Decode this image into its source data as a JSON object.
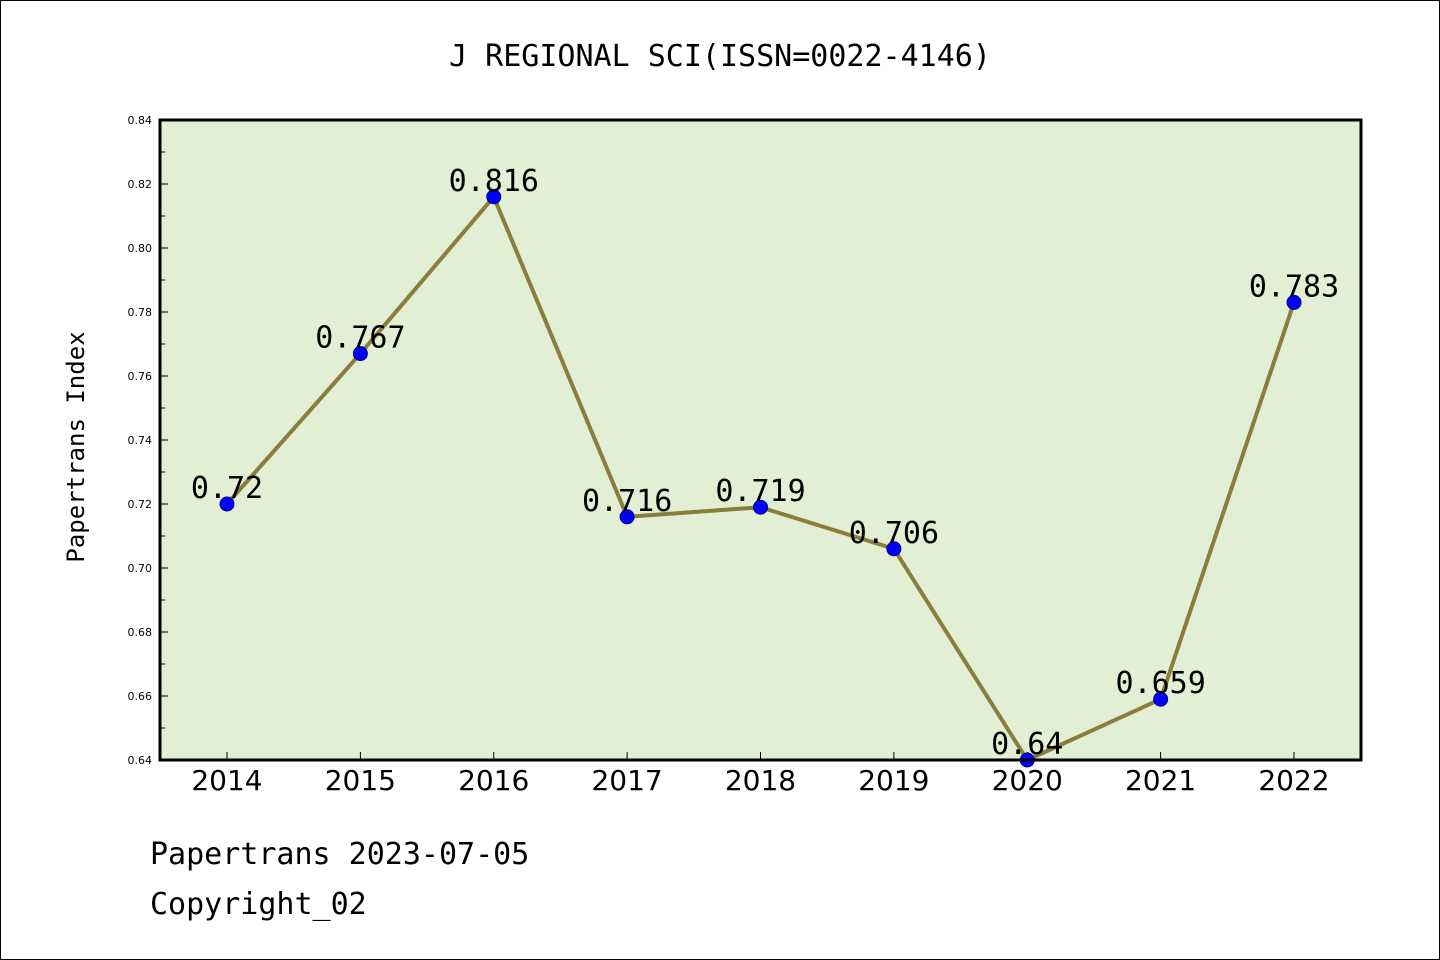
{
  "chart_data": {
    "type": "line",
    "title": "J REGIONAL SCI(ISSN=0022-4146)",
    "xlabel": "",
    "ylabel": "Papertrans Index",
    "categories": [
      "2014",
      "2015",
      "2016",
      "2017",
      "2018",
      "2019",
      "2020",
      "2021",
      "2022"
    ],
    "values": [
      0.72,
      0.767,
      0.816,
      0.716,
      0.719,
      0.706,
      0.64,
      0.659,
      0.783
    ],
    "data_labels": [
      "0.72",
      "0.767",
      "0.816",
      "0.716",
      "0.719",
      "0.706",
      "0.64",
      "0.659",
      "0.783"
    ],
    "ylim": [
      0.64,
      0.84
    ],
    "yticks": [
      "0.64",
      "0.66",
      "0.68",
      "0.70",
      "0.72",
      "0.74",
      "0.76",
      "0.78",
      "0.80",
      "0.82",
      "0.84"
    ],
    "grid": false,
    "colors": {
      "plot_background": "#e2efd4",
      "line": "#8b7d3a",
      "marker": "#0000ff"
    }
  },
  "footer": {
    "date_line": "Papertrans 2023-07-05",
    "copyright": "Copyright_02"
  }
}
